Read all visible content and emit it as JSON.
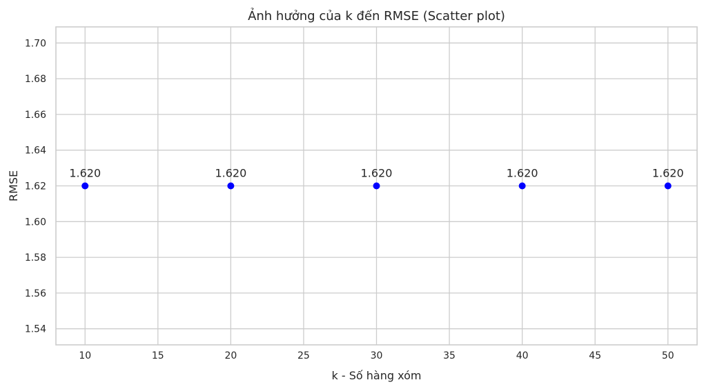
{
  "chart_data": {
    "type": "scatter",
    "title": "Ảnh hưởng của k đến RMSE (Scatter plot)",
    "xlabel": "k - Số hàng xóm",
    "ylabel": "RMSE",
    "xlim": [
      8,
      52
    ],
    "ylim": [
      1.531,
      1.709
    ],
    "xticks": [
      10,
      15,
      20,
      25,
      30,
      35,
      40,
      45,
      50
    ],
    "yticks": [
      1.54,
      1.56,
      1.58,
      1.6,
      1.62,
      1.64,
      1.66,
      1.68,
      1.7
    ],
    "grid": true,
    "x": [
      10,
      20,
      30,
      40,
      50
    ],
    "y": [
      1.62,
      1.62,
      1.62,
      1.62,
      1.62
    ],
    "point_labels": [
      "1.620",
      "1.620",
      "1.620",
      "1.620",
      "1.620"
    ],
    "marker_color": "#0000ff"
  }
}
